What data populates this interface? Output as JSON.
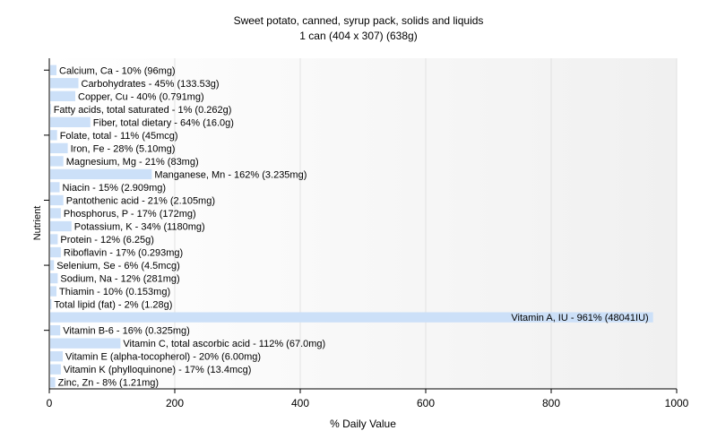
{
  "chart_data": {
    "type": "bar",
    "orientation": "horizontal",
    "title": "Sweet potato, canned, syrup pack, solids and liquids",
    "subtitle": "1 can (404 x 307) (638g)",
    "xlabel": "% Daily Value",
    "ylabel": "Nutrient",
    "xlim": [
      0,
      1000
    ],
    "xticks": [
      "0",
      "200",
      "400",
      "600",
      "800",
      "1000"
    ],
    "grid": true,
    "bar_color": "#cce0f8",
    "categories": [
      "Calcium, Ca",
      "Carbohydrates",
      "Copper, Cu",
      "Fatty acids, total saturated",
      "Fiber, total dietary",
      "Folate, total",
      "Iron, Fe",
      "Magnesium, Mg",
      "Manganese, Mn",
      "Niacin",
      "Pantothenic acid",
      "Phosphorus, P",
      "Potassium, K",
      "Protein",
      "Riboflavin",
      "Selenium, Se",
      "Sodium, Na",
      "Thiamin",
      "Total lipid (fat)",
      "Vitamin A, IU",
      "Vitamin B-6",
      "Vitamin C, total ascorbic acid",
      "Vitamin E (alpha-tocopherol)",
      "Vitamin K (phylloquinone)",
      "Zinc, Zn"
    ],
    "values": [
      10,
      45,
      40,
      1,
      64,
      11,
      28,
      21,
      162,
      15,
      21,
      17,
      34,
      12,
      17,
      6,
      12,
      10,
      2,
      961,
      16,
      112,
      20,
      17,
      8
    ],
    "labels": [
      "Calcium, Ca - 10% (96mg)",
      "Carbohydrates - 45% (133.53g)",
      "Copper, Cu - 40% (0.791mg)",
      "Fatty acids, total saturated - 1% (0.262g)",
      "Fiber, total dietary - 64% (16.0g)",
      "Folate, total - 11% (45mcg)",
      "Iron, Fe - 28% (5.10mg)",
      "Magnesium, Mg - 21% (83mg)",
      "Manganese, Mn - 162% (3.235mg)",
      "Niacin - 15% (2.909mg)",
      "Pantothenic acid - 21% (2.105mg)",
      "Phosphorus, P - 17% (172mg)",
      "Potassium, K - 34% (1180mg)",
      "Protein - 12% (6.25g)",
      "Riboflavin - 17% (0.293mg)",
      "Selenium, Se - 6% (4.5mcg)",
      "Sodium, Na - 12% (281mg)",
      "Thiamin - 10% (0.153mg)",
      "Total lipid (fat) - 2% (1.28g)",
      "Vitamin A, IU - 961% (48041IU)",
      "Vitamin B-6 - 16% (0.325mg)",
      "Vitamin C, total ascorbic acid - 112% (67.0mg)",
      "Vitamin E (alpha-tocopherol) - 20% (6.00mg)",
      "Vitamin K (phylloquinone) - 17% (13.4mcg)",
      "Zinc, Zn - 8% (1.21mg)"
    ]
  }
}
